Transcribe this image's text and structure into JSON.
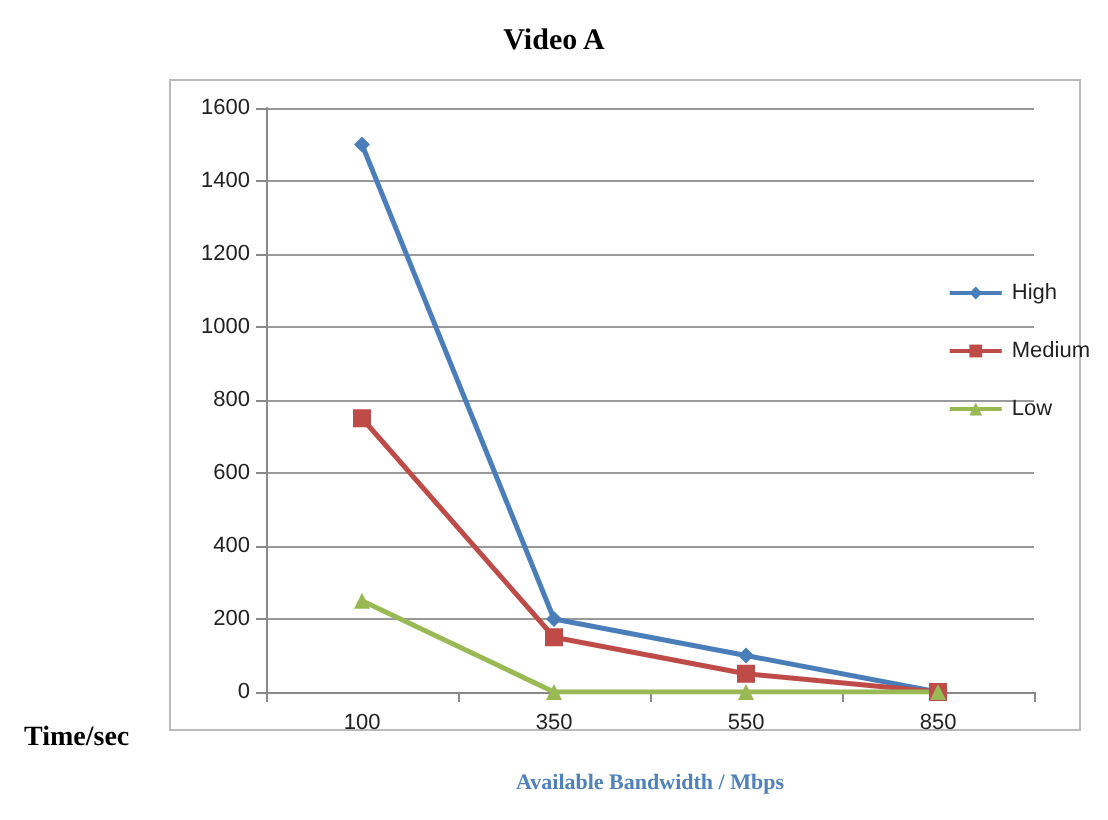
{
  "chart_data": {
    "type": "line",
    "title": "Video A",
    "xlabel": "Available Bandwidth / Mbps",
    "ylabel": "Time/sec",
    "categories": [
      "100",
      "350",
      "550",
      "850"
    ],
    "series": [
      {
        "name": "High",
        "color": "#4a7ebb",
        "marker": "diamond",
        "values": [
          1500,
          200,
          100,
          0
        ]
      },
      {
        "name": "Medium",
        "color": "#be4b48",
        "marker": "square",
        "values": [
          750,
          150,
          50,
          0
        ]
      },
      {
        "name": "Low",
        "color": "#98b954",
        "marker": "triangle",
        "values": [
          250,
          0,
          0,
          0
        ]
      }
    ],
    "ylim": [
      0,
      1600
    ],
    "yticks": [
      0,
      200,
      400,
      600,
      800,
      1000,
      1200,
      1400,
      1600
    ],
    "grid": "y",
    "legend": "right",
    "line_style": "solid"
  }
}
